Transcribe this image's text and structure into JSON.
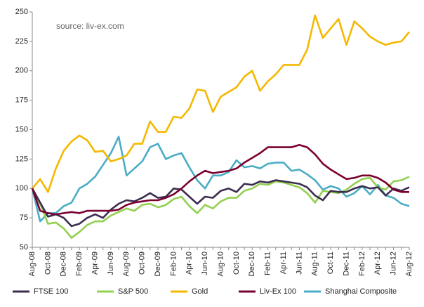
{
  "chart_data": {
    "type": "line",
    "annotation": "source: liv-ex.com",
    "categories": [
      "Aug-08",
      null,
      "Oct-08",
      null,
      "Dec-08",
      null,
      "Feb-09",
      null,
      "Apr-09",
      null,
      "Jun-09",
      null,
      "Aug-09",
      null,
      "Oct-09",
      null,
      "Dec-09",
      null,
      "Feb-10",
      null,
      "Apr-10",
      null,
      "Jun-10",
      null,
      "Aug-10",
      null,
      "Oct-10",
      null,
      "Dec-10",
      null,
      "Feb-11",
      null,
      "Apr-11",
      null,
      "Jun-11",
      null,
      "Aug-11",
      null,
      "Oct-11",
      null,
      "Dec-11",
      null,
      "Feb-12",
      null,
      "Apr-12",
      null,
      "Jun-12",
      null,
      "Aug-12"
    ],
    "series": [
      {
        "name": "FTSE 100",
        "color": "#3c2d4f",
        "values": [
          100,
          88,
          76,
          78,
          75,
          68,
          70,
          75,
          78,
          75,
          82,
          87,
          90,
          89,
          92,
          96,
          92,
          93,
          100,
          99,
          93,
          87,
          93,
          92,
          98,
          100,
          97,
          104,
          103,
          106,
          105,
          107,
          106,
          105,
          104,
          101,
          94,
          90,
          98,
          97,
          97,
          100,
          102,
          100,
          101,
          94,
          100,
          98,
          101
        ]
      },
      {
        "name": "S&P 500",
        "color": "#92d050",
        "values": [
          100,
          87,
          70,
          71,
          66,
          58,
          63,
          69,
          72,
          72,
          77,
          80,
          83,
          81,
          86,
          87,
          84,
          86,
          91,
          93,
          85,
          79,
          86,
          83,
          89,
          92,
          92,
          98,
          100,
          104,
          103,
          106,
          105,
          103,
          101,
          96,
          88,
          98,
          97,
          96,
          99,
          104,
          108,
          109,
          101,
          99,
          106,
          107,
          110
        ]
      },
      {
        "name": "Gold",
        "color": "#f5b800",
        "values": [
          100,
          108,
          97,
          117,
          132,
          140,
          145,
          141,
          131,
          132,
          123,
          125,
          128,
          138,
          138,
          157,
          148,
          148,
          161,
          160,
          168,
          184,
          183,
          165,
          178,
          182,
          186,
          195,
          200,
          183,
          191,
          197,
          205,
          205,
          205,
          218,
          247,
          228,
          236,
          244,
          222,
          242,
          236,
          229,
          225,
          222,
          224,
          225,
          233
        ]
      },
      {
        "name": "Liv-Ex 100",
        "color": "#7a0030",
        "values": [
          100,
          81,
          79,
          78,
          79,
          80,
          79,
          81,
          81,
          81,
          81,
          82,
          86,
          88,
          89,
          90,
          90,
          92,
          95,
          100,
          106,
          111,
          115,
          113,
          114,
          115,
          117,
          122,
          126,
          130,
          135,
          135,
          135,
          135,
          137,
          135,
          129,
          121,
          116,
          112,
          108,
          109,
          111,
          111,
          109,
          105,
          99,
          97,
          97
        ]
      },
      {
        "name": "Shanghai Composite",
        "color": "#4bacc6",
        "values": [
          100,
          72,
          79,
          79,
          85,
          88,
          100,
          104,
          110,
          120,
          130,
          144,
          111,
          117,
          123,
          135,
          138,
          125,
          128,
          130,
          118,
          107,
          100,
          111,
          111,
          114,
          124,
          118,
          119,
          117,
          121,
          122,
          122,
          115,
          116,
          112,
          107,
          99,
          102,
          100,
          93,
          96,
          102,
          95,
          103,
          94,
          92,
          87,
          85
        ]
      }
    ],
    "ylim": [
      50,
      250
    ],
    "yticks": [
      50,
      75,
      100,
      125,
      150,
      175,
      200,
      225,
      250
    ],
    "grid": false,
    "legend": "bottom"
  }
}
